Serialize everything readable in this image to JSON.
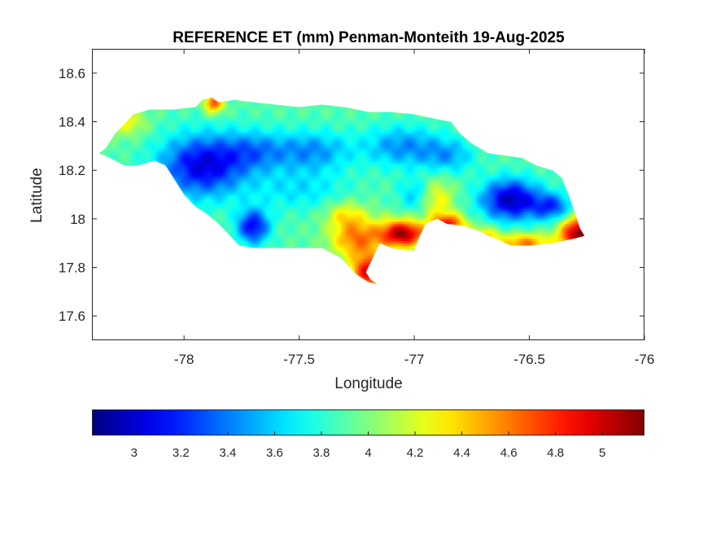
{
  "chart_data": {
    "type": "heatmap",
    "title": "REFERENCE ET (mm) Penman-Monteith 19-Aug-2025",
    "xlabel": "Longitude",
    "ylabel": "Latitude",
    "xlim": [
      -78.4,
      -76
    ],
    "ylim": [
      17.5,
      18.7
    ],
    "xticks": [
      -78,
      -77.5,
      -77,
      -76.5,
      -76
    ],
    "yticks": [
      17.6,
      17.8,
      18,
      18.2,
      18.4,
      18.6
    ],
    "xtick_labels": [
      "-78",
      "-77.5",
      "-77",
      "-76.5",
      "-76"
    ],
    "ytick_labels": [
      "17.6",
      "17.8",
      "18",
      "18.2",
      "18.4",
      "18.6"
    ],
    "grid": false,
    "colormap": "jet",
    "colorbar": {
      "orientation": "horizontal",
      "location": "bottom",
      "range": [
        2.82,
        5.18
      ],
      "ticks": [
        3,
        3.2,
        3.4,
        3.6,
        3.8,
        4,
        4.2,
        4.4,
        4.6,
        4.8,
        5
      ],
      "tick_labels": [
        "3",
        "3.2",
        "3.4",
        "3.6",
        "3.8",
        "4",
        "4.2",
        "4.4",
        "4.6",
        "4.8",
        "5"
      ]
    },
    "value_range": [
      2.82,
      5.18
    ],
    "island_outline_lonlat": [
      [
        -78.37,
        18.27
      ],
      [
        -78.34,
        18.29
      ],
      [
        -78.3,
        18.35
      ],
      [
        -78.27,
        18.38
      ],
      [
        -78.22,
        18.43
      ],
      [
        -78.15,
        18.45
      ],
      [
        -78.05,
        18.45
      ],
      [
        -77.95,
        18.46
      ],
      [
        -77.92,
        18.49
      ],
      [
        -77.88,
        18.5
      ],
      [
        -77.85,
        18.48
      ],
      [
        -77.78,
        18.49
      ],
      [
        -77.7,
        18.48
      ],
      [
        -77.6,
        18.47
      ],
      [
        -77.5,
        18.46
      ],
      [
        -77.4,
        18.47
      ],
      [
        -77.3,
        18.46
      ],
      [
        -77.2,
        18.44
      ],
      [
        -77.1,
        18.44
      ],
      [
        -77.0,
        18.43
      ],
      [
        -76.9,
        18.41
      ],
      [
        -76.84,
        18.4
      ],
      [
        -76.8,
        18.35
      ],
      [
        -76.75,
        18.31
      ],
      [
        -76.68,
        18.27
      ],
      [
        -76.6,
        18.26
      ],
      [
        -76.53,
        18.25
      ],
      [
        -76.47,
        18.22
      ],
      [
        -76.4,
        18.2
      ],
      [
        -76.36,
        18.17
      ],
      [
        -76.33,
        18.1
      ],
      [
        -76.3,
        18.02
      ],
      [
        -76.28,
        17.96
      ],
      [
        -76.26,
        17.93
      ],
      [
        -76.3,
        17.92
      ],
      [
        -76.4,
        17.9
      ],
      [
        -76.5,
        17.89
      ],
      [
        -76.58,
        17.89
      ],
      [
        -76.65,
        17.92
      ],
      [
        -76.72,
        17.95
      ],
      [
        -76.78,
        17.97
      ],
      [
        -76.86,
        17.98
      ],
      [
        -76.9,
        18.0
      ],
      [
        -76.95,
        17.98
      ],
      [
        -76.98,
        17.92
      ],
      [
        -77.0,
        17.87
      ],
      [
        -77.04,
        17.87
      ],
      [
        -77.1,
        17.88
      ],
      [
        -77.15,
        17.9
      ],
      [
        -77.18,
        17.84
      ],
      [
        -77.2,
        17.8
      ],
      [
        -77.21,
        17.78
      ],
      [
        -77.19,
        17.75
      ],
      [
        -77.16,
        17.73
      ],
      [
        -77.2,
        17.74
      ],
      [
        -77.25,
        17.77
      ],
      [
        -77.28,
        17.8
      ],
      [
        -77.32,
        17.84
      ],
      [
        -77.4,
        17.88
      ],
      [
        -77.5,
        17.88
      ],
      [
        -77.6,
        17.88
      ],
      [
        -77.7,
        17.88
      ],
      [
        -77.76,
        17.89
      ],
      [
        -77.8,
        17.93
      ],
      [
        -77.85,
        17.98
      ],
      [
        -77.9,
        18.02
      ],
      [
        -77.95,
        18.05
      ],
      [
        -78.0,
        18.1
      ],
      [
        -78.04,
        18.16
      ],
      [
        -78.08,
        18.22
      ],
      [
        -78.13,
        18.24
      ],
      [
        -78.2,
        18.22
      ],
      [
        -78.26,
        18.22
      ],
      [
        -78.32,
        18.25
      ],
      [
        -78.37,
        18.27
      ]
    ],
    "value_field": {
      "base": 3.9,
      "features": [
        {
          "lon": -77.92,
          "lat": 18.22,
          "amplitude": -0.85,
          "spread_lon": 0.13,
          "spread_lat": 0.09
        },
        {
          "lon": -77.7,
          "lat": 18.28,
          "amplitude": -0.4,
          "spread_lon": 0.1,
          "spread_lat": 0.06
        },
        {
          "lon": -77.7,
          "lat": 17.97,
          "amplitude": -0.8,
          "spread_lon": 0.05,
          "spread_lat": 0.05
        },
        {
          "lon": -77.45,
          "lat": 18.28,
          "amplitude": -0.45,
          "spread_lon": 0.12,
          "spread_lat": 0.06
        },
        {
          "lon": -77.05,
          "lat": 18.3,
          "amplitude": -0.45,
          "spread_lon": 0.12,
          "spread_lat": 0.06
        },
        {
          "lon": -76.85,
          "lat": 18.26,
          "amplitude": -0.35,
          "spread_lon": 0.08,
          "spread_lat": 0.05
        },
        {
          "lon": -76.58,
          "lat": 18.08,
          "amplitude": -0.95,
          "spread_lon": 0.09,
          "spread_lat": 0.06
        },
        {
          "lon": -76.4,
          "lat": 18.05,
          "amplitude": -0.6,
          "spread_lon": 0.06,
          "spread_lat": 0.04
        },
        {
          "lon": -77.5,
          "lat": 18.12,
          "amplitude": -0.25,
          "spread_lon": 0.15,
          "spread_lat": 0.06
        },
        {
          "lon": -77.25,
          "lat": 17.92,
          "amplitude": 0.7,
          "spread_lon": 0.08,
          "spread_lat": 0.06
        },
        {
          "lon": -77.2,
          "lat": 17.78,
          "amplitude": 1.0,
          "spread_lon": 0.05,
          "spread_lat": 0.05
        },
        {
          "lon": -77.05,
          "lat": 17.94,
          "amplitude": 1.2,
          "spread_lon": 0.07,
          "spread_lat": 0.04
        },
        {
          "lon": -76.85,
          "lat": 17.98,
          "amplitude": 0.9,
          "spread_lon": 0.05,
          "spread_lat": 0.03
        },
        {
          "lon": -76.28,
          "lat": 17.94,
          "amplitude": 1.3,
          "spread_lon": 0.06,
          "spread_lat": 0.05
        },
        {
          "lon": -76.52,
          "lat": 17.9,
          "amplitude": 0.7,
          "spread_lon": 0.08,
          "spread_lat": 0.03
        },
        {
          "lon": -76.7,
          "lat": 17.93,
          "amplitude": 0.5,
          "spread_lon": 0.05,
          "spread_lat": 0.03
        },
        {
          "lon": -77.87,
          "lat": 18.48,
          "amplitude": 0.8,
          "spread_lon": 0.03,
          "spread_lat": 0.03
        },
        {
          "lon": -78.25,
          "lat": 18.4,
          "amplitude": 0.35,
          "spread_lon": 0.06,
          "spread_lat": 0.04
        },
        {
          "lon": -77.3,
          "lat": 18.02,
          "amplitude": 0.35,
          "spread_lon": 0.06,
          "spread_lat": 0.04
        },
        {
          "lon": -76.9,
          "lat": 18.08,
          "amplitude": 0.4,
          "spread_lon": 0.05,
          "spread_lat": 0.06
        },
        {
          "lon": -77.0,
          "lat": 18.1,
          "amplitude": -0.3,
          "spread_lon": 0.05,
          "spread_lat": 0.05
        }
      ]
    }
  }
}
